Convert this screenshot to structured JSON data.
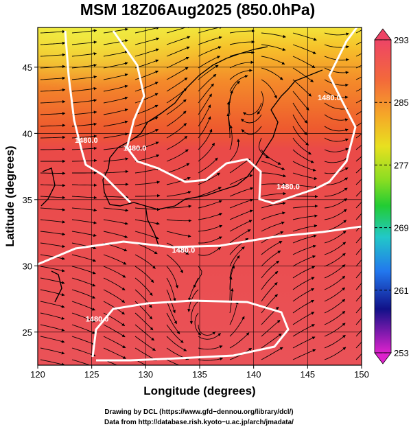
{
  "title": "MSM 18Z06Aug2025 (850.0hPa)",
  "xlabel": "Longitude (degrees)",
  "ylabel": "Latitude  (degrees)",
  "x_ticks": [
    "120",
    "125",
    "130",
    "135",
    "140",
    "145",
    "150"
  ],
  "y_ticks": [
    "25",
    "30",
    "35",
    "40",
    "45"
  ],
  "colorbar": {
    "min": 253,
    "max": 293,
    "labels": [
      "293",
      "285",
      "277",
      "269",
      "261",
      "253"
    ],
    "colors": [
      "#ee4466",
      "#f59a28",
      "#e8e020",
      "#22cc33",
      "#22c8c8",
      "#2255ee",
      "#111188",
      "#dd22cc"
    ]
  },
  "contour_labels": [
    {
      "text": "1480.0",
      "lon": 147.0,
      "lat": 42.5
    },
    {
      "text": "1480.0",
      "lon": 124.5,
      "lat": 39.3
    },
    {
      "text": "1480.0",
      "lon": 129.0,
      "lat": 38.7
    },
    {
      "text": "1480.0",
      "lon": 143.2,
      "lat": 35.8
    },
    {
      "text": "1480.0",
      "lon": 133.5,
      "lat": 31.0
    },
    {
      "text": "1480.0",
      "lon": 125.5,
      "lat": 25.8
    }
  ],
  "credits": {
    "line1": "Drawing by DCL (https://www.gfd−dennou.org/library/dcl/)",
    "line2": "Data from http://database.rish.kyoto−u.ac.jp/arch/jmadata/"
  }
}
